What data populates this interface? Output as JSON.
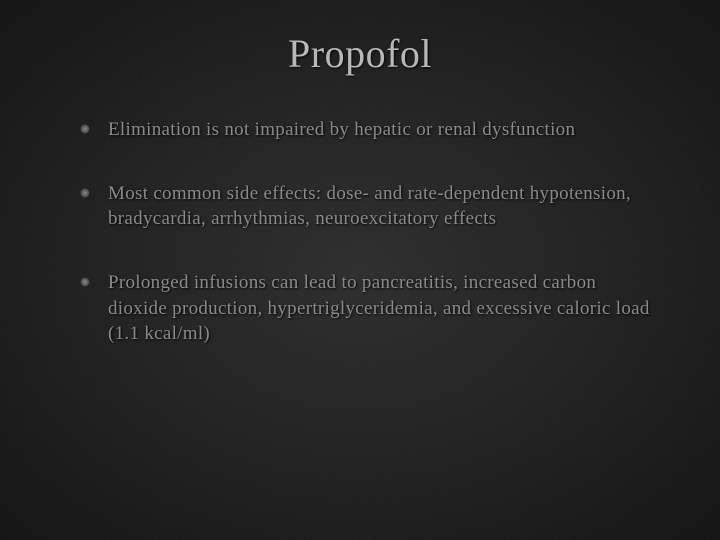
{
  "slide": {
    "title": "Propofol",
    "title_fontsize": 40,
    "title_color": "#b8b8b8",
    "background_color": "#1a1a1a",
    "body_color": "#8a8a8a",
    "body_fontsize": 19,
    "bullets": [
      "Elimination is not impaired by hepatic or renal dysfunction",
      "Most common side effects: dose- and rate-dependent hypotension, bradycardia, arrhythmias, neuroexcitatory effects",
      "Prolonged infusions can lead to pancreatitis, increased carbon dioxide production, hypertriglyceridemia, and excessive caloric load (1.1 kcal/ml)"
    ]
  }
}
